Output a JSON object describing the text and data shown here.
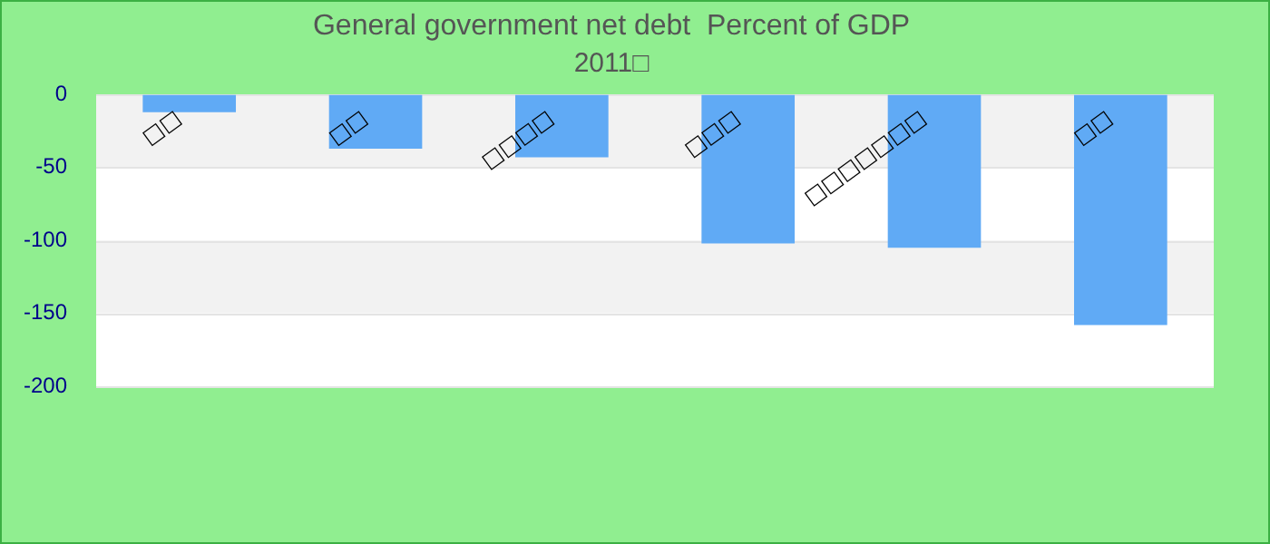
{
  "chart_data": {
    "type": "bar",
    "title": "General government net debt  Percent of GDP",
    "subtitle": "2011□",
    "categories": [
      "□□",
      "□□",
      "□□□□",
      "□□□",
      "□□□□□□□",
      "□□"
    ],
    "values": [
      -12,
      -37,
      -43,
      -102,
      -105,
      -158
    ],
    "color": "#60aaf5",
    "ylim": [
      -200,
      0
    ],
    "yticks": [
      -200,
      -150,
      -100,
      -50,
      0
    ],
    "grid": true
  }
}
